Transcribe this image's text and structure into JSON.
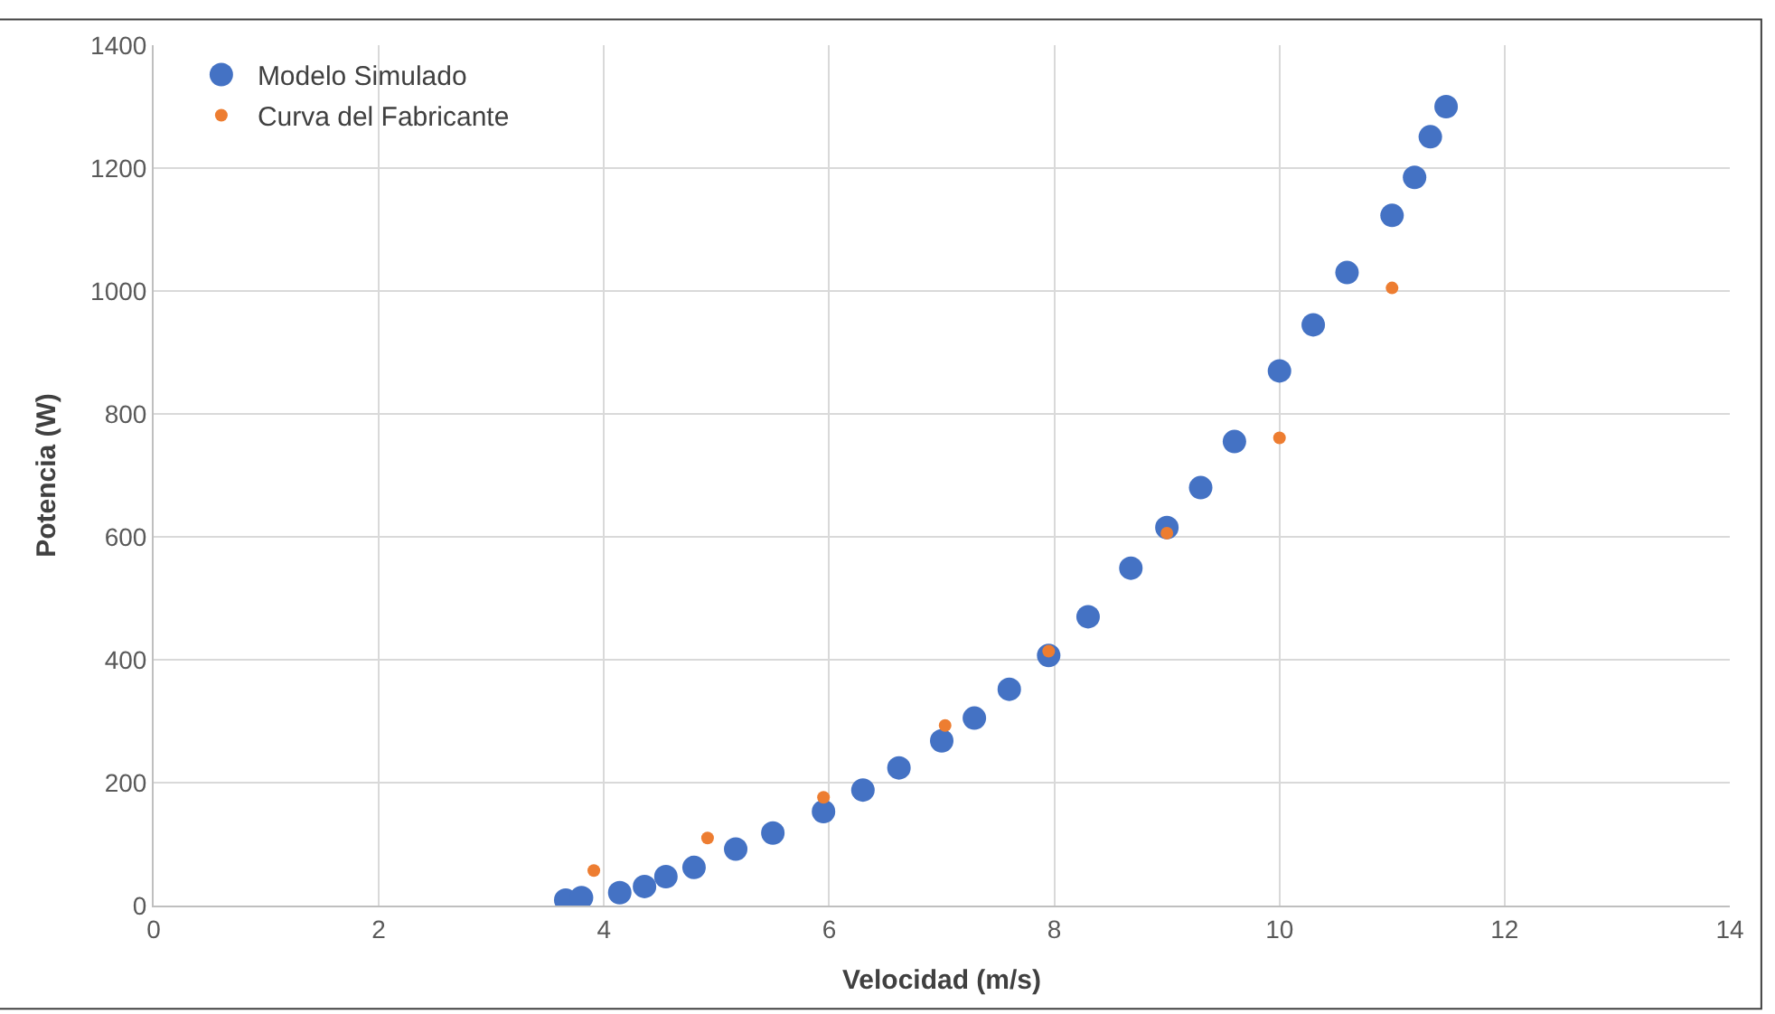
{
  "chart_data": {
    "type": "scatter",
    "xlabel": "Velocidad (m/s)",
    "ylabel": "Potencia (W)",
    "xlim": [
      0,
      14
    ],
    "xticks": [
      0,
      2,
      4,
      6,
      8,
      10,
      12,
      14
    ],
    "ylim": [
      0,
      1400
    ],
    "yticks": [
      0,
      200,
      400,
      600,
      800,
      1000,
      1200,
      1400
    ],
    "grid": true,
    "legend": "top left",
    "marker": "circle",
    "series": [
      {
        "name": "Modelo Simulado",
        "color": "#4472c4",
        "x": [
          3.66,
          3.8,
          4.14,
          4.36,
          4.55,
          4.8,
          5.17,
          5.5,
          5.95,
          6.3,
          6.62,
          7.0,
          7.29,
          7.6,
          7.95,
          8.3,
          8.68,
          9.0,
          9.3,
          9.6,
          10.0,
          10.3,
          10.6,
          11.0,
          11.2,
          11.34,
          11.48
        ],
        "values": [
          9,
          13,
          21,
          31,
          47,
          62,
          92,
          118,
          153,
          188,
          224,
          268,
          305,
          352,
          407,
          470,
          549,
          615,
          680,
          755,
          870,
          945,
          1030,
          1123,
          1185,
          1251,
          1300
        ]
      },
      {
        "name": "Curva del Fabricante",
        "color": "#ed7d31",
        "x": [
          3.91,
          4.92,
          5.95,
          7.03,
          7.95,
          9.0,
          10.0,
          11.0
        ],
        "values": [
          57,
          110,
          176,
          293,
          414,
          606,
          761,
          1005
        ]
      }
    ]
  }
}
